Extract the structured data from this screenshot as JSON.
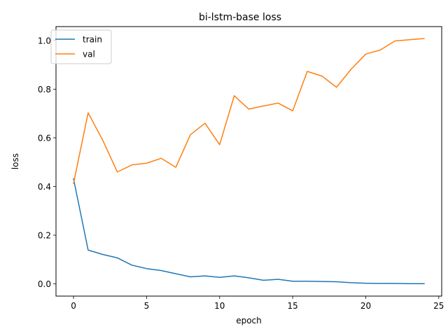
{
  "chart_data": {
    "type": "line",
    "title": "bi-lstm-base loss",
    "xlabel": "epoch",
    "ylabel": "loss",
    "xlim": [
      -1.2,
      25.2
    ],
    "ylim": [
      -0.05,
      1.057
    ],
    "xticks": [
      0,
      5,
      10,
      15,
      20,
      25
    ],
    "yticks": [
      0.0,
      0.2,
      0.4,
      0.6,
      0.8,
      1.0
    ],
    "xtick_labels": [
      "0",
      "5",
      "10",
      "15",
      "20",
      "25"
    ],
    "ytick_labels": [
      "0.0",
      "0.2",
      "0.4",
      "0.6",
      "0.8",
      "1.0"
    ],
    "grid": false,
    "legend_position": "top-left",
    "x": [
      0,
      1,
      2,
      3,
      4,
      5,
      6,
      7,
      8,
      9,
      10,
      11,
      12,
      13,
      14,
      15,
      16,
      17,
      18,
      19,
      20,
      21,
      22,
      23,
      24
    ],
    "series": [
      {
        "name": "train",
        "color": "#1f77b4",
        "values": [
          0.432,
          0.139,
          0.121,
          0.107,
          0.077,
          0.063,
          0.055,
          0.042,
          0.029,
          0.033,
          0.027,
          0.033,
          0.025,
          0.015,
          0.019,
          0.011,
          0.011,
          0.01,
          0.009,
          0.005,
          0.003,
          0.002,
          0.002,
          0.001,
          0.001
        ]
      },
      {
        "name": "val",
        "color": "#ff7f0e",
        "values": [
          0.413,
          0.703,
          0.59,
          0.46,
          0.489,
          0.496,
          0.516,
          0.479,
          0.613,
          0.66,
          0.572,
          0.773,
          0.718,
          0.731,
          0.743,
          0.711,
          0.873,
          0.854,
          0.808,
          0.882,
          0.944,
          0.961,
          0.998,
          1.003,
          1.008
        ]
      }
    ]
  }
}
